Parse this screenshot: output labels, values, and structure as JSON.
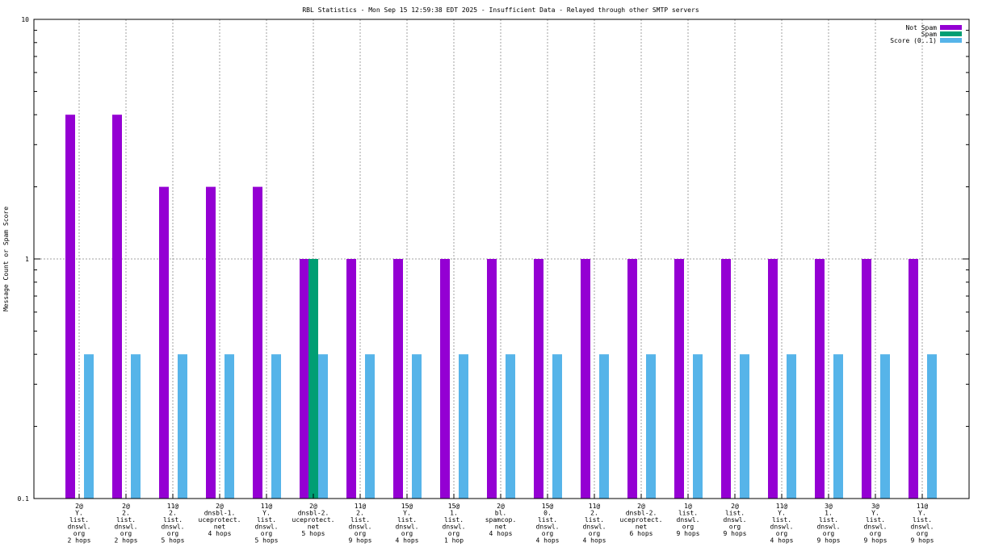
{
  "chart_data": {
    "type": "bar",
    "title": "RBL Statistics - Mon Sep 15 12:59:38 EDT 2025 - Insufficient Data - Relayed through other SMTP servers",
    "xlabel": "",
    "ylabel": "Message Count or Spam Score",
    "yscale": "log",
    "ylim": [
      0.1,
      10
    ],
    "yticks": [
      "10",
      "1",
      "0.1"
    ],
    "yticks_values": [
      10,
      1,
      0.1
    ],
    "grid": true,
    "legend_position": "top-right",
    "categories": [
      [
        "2@",
        "Y.",
        "list.",
        "dnswl.",
        "org",
        "2 hops"
      ],
      [
        "2@",
        "2.",
        "list.",
        "dnswl.",
        "org",
        "2 hops"
      ],
      [
        "11@",
        "2.",
        "list.",
        "dnswl.",
        "org",
        "5 hops"
      ],
      [
        "2@",
        "dnsbl-1.",
        "uceprotect.",
        "net",
        "4 hops"
      ],
      [
        "11@",
        "Y.",
        "list.",
        "dnswl.",
        "org",
        "5 hops"
      ],
      [
        "2@",
        "dnsbl-2.",
        "uceprotect.",
        "net",
        "5 hops"
      ],
      [
        "11@",
        "2.",
        "list.",
        "dnswl.",
        "org",
        "9 hops"
      ],
      [
        "15@",
        "Y.",
        "list.",
        "dnswl.",
        "org",
        "4 hops"
      ],
      [
        "15@",
        "1.",
        "list.",
        "dnswl.",
        "org",
        "1 hop"
      ],
      [
        "2@",
        "bl.",
        "spamcop.",
        "net",
        "4 hops"
      ],
      [
        "15@",
        "0.",
        "list.",
        "dnswl.",
        "org",
        "4 hops"
      ],
      [
        "11@",
        "2.",
        "list.",
        "dnswl.",
        "org",
        "4 hops"
      ],
      [
        "2@",
        "dnsbl-2.",
        "uceprotect.",
        "net",
        "6 hops"
      ],
      [
        "1@",
        "list.",
        "dnswl.",
        "org",
        "9 hops"
      ],
      [
        "2@",
        "list.",
        "dnswl.",
        "org",
        "9 hops"
      ],
      [
        "11@",
        "Y.",
        "list.",
        "dnswl.",
        "org",
        "4 hops"
      ],
      [
        "3@",
        "1.",
        "list.",
        "dnswl.",
        "org",
        "9 hops"
      ],
      [
        "3@",
        "Y.",
        "list.",
        "dnswl.",
        "org",
        "9 hops"
      ],
      [
        "11@",
        "Y.",
        "list.",
        "dnswl.",
        "org",
        "9 hops"
      ]
    ],
    "series": [
      {
        "name": "Not Spam",
        "color": "#9400d3",
        "values": [
          4,
          4,
          2,
          2,
          2,
          1,
          1,
          1,
          1,
          1,
          1,
          1,
          1,
          1,
          1,
          1,
          1,
          1,
          1
        ]
      },
      {
        "name": "Spam",
        "color": "#009e73",
        "values": [
          0,
          0,
          0,
          0,
          0,
          1,
          0,
          0,
          0,
          0,
          0,
          0,
          0,
          0,
          0,
          0,
          0,
          0,
          0
        ]
      },
      {
        "name": "Score (0..1)",
        "color": "#56b4e9",
        "values": [
          0.4,
          0.4,
          0.4,
          0.4,
          0.4,
          0.4,
          0.4,
          0.4,
          0.4,
          0.4,
          0.4,
          0.4,
          0.4,
          0.4,
          0.4,
          0.4,
          0.4,
          0.4,
          0.4
        ]
      }
    ]
  }
}
